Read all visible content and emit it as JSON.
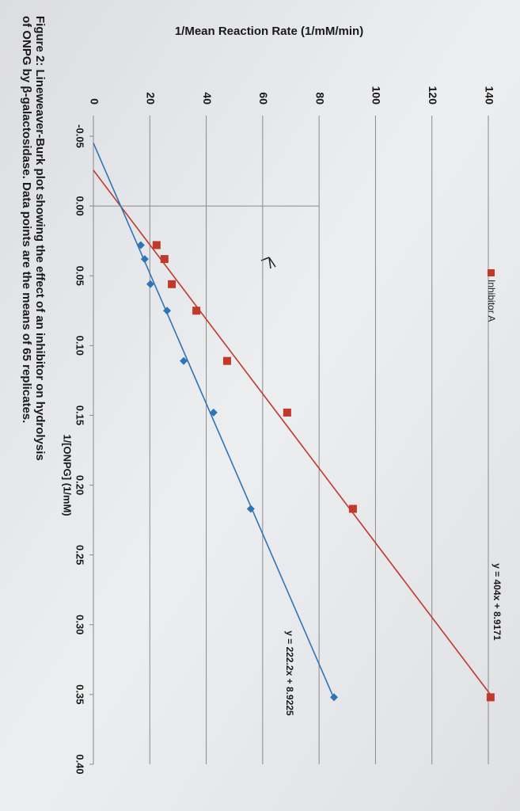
{
  "chart_data": {
    "type": "scatter",
    "y_axis_label": "1/Mean Reaction Rate (1/mM/min)",
    "x_axis_label": "1/[ONPG] (1/mM)",
    "caption": [
      "Figure 2: Lineweaver-Burk plot showing the effect of an inhibitor on hydrolysis",
      "of ONPG by β-galactosidase. Data points are the means of 65 replicates."
    ],
    "x": [
      0.028,
      0.038,
      0.056,
      0.075,
      0.111,
      0.148,
      0.217,
      0.352
    ],
    "series": [
      {
        "name": "Inhibitor A",
        "color": "#c0392b",
        "marker": "square",
        "equation": "y = 404x + 8.9171",
        "values": [
          22.4,
          25.2,
          27.8,
          36.5,
          47.4,
          68.7,
          92.0,
          140.8
        ]
      },
      {
        "color": "#2e75b6",
        "marker": "diamond",
        "equation": "y = 222.2x + 8.9225",
        "values": [
          16.8,
          18.2,
          20.2,
          26.1,
          32.0,
          42.6,
          55.8,
          85.3
        ]
      }
    ],
    "xlim": [
      -0.05,
      0.4
    ],
    "xticks": [
      {
        "value": -0.05,
        "label": "-0.05"
      },
      {
        "value": 0,
        "label": "0.00"
      },
      {
        "value": 0.05,
        "label": "0.05"
      },
      {
        "value": 0.1,
        "label": "0.10"
      },
      {
        "value": 0.15,
        "label": "0.15"
      },
      {
        "value": 0.2,
        "label": "0.20"
      },
      {
        "value": 0.25,
        "label": "0.25"
      },
      {
        "value": 0.3,
        "label": "0.30"
      },
      {
        "value": 0.35,
        "label": "0.35"
      },
      {
        "value": 0.4,
        "label": "0.40"
      }
    ],
    "ylim": [
      0,
      140
    ],
    "yticks": [
      0,
      20,
      40,
      60,
      80,
      100,
      120,
      140
    ],
    "grid": true,
    "trendline": true
  }
}
